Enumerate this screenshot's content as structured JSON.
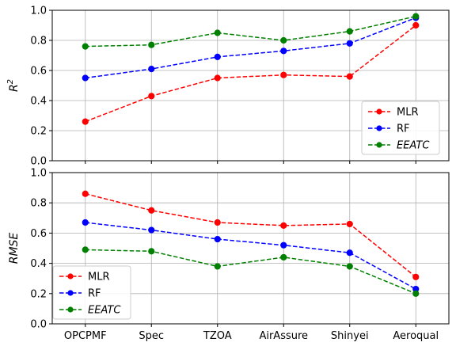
{
  "chart_data": [
    {
      "type": "line",
      "categories": [
        "OPCPMF",
        "Spec",
        "TZOA",
        "AirAssure",
        "Shinyei",
        "Aeroqual"
      ],
      "ylabel": "R",
      "ylabel_superscript": "2",
      "ylim": [
        0,
        1.0
      ],
      "yticks": [
        "0.0",
        "0.2",
        "0.4",
        "0.6",
        "0.8",
        "1.0"
      ],
      "grid": true,
      "legend_position": "lower-right",
      "series": [
        {
          "name": "MLR",
          "color": "#ff0000",
          "values": [
            0.26,
            0.43,
            0.55,
            0.57,
            0.56,
            0.9
          ]
        },
        {
          "name": "RF",
          "color": "#0000ff",
          "values": [
            0.55,
            0.61,
            0.69,
            0.73,
            0.78,
            0.95
          ]
        },
        {
          "name": "EEATC",
          "color": "#008000",
          "values": [
            0.76,
            0.77,
            0.85,
            0.8,
            0.86,
            0.96
          ]
        }
      ]
    },
    {
      "type": "line",
      "categories": [
        "OPCPMF",
        "Spec",
        "TZOA",
        "AirAssure",
        "Shinyei",
        "Aeroqual"
      ],
      "ylabel": "RMSE",
      "ylim": [
        0,
        1.0
      ],
      "yticks": [
        "0.0",
        "0.2",
        "0.4",
        "0.6",
        "0.8",
        "1.0"
      ],
      "grid": true,
      "legend_position": "lower-left",
      "series": [
        {
          "name": "MLR",
          "color": "#ff0000",
          "values": [
            0.86,
            0.75,
            0.67,
            0.65,
            0.66,
            0.31
          ]
        },
        {
          "name": "RF",
          "color": "#0000ff",
          "values": [
            0.67,
            0.62,
            0.56,
            0.52,
            0.47,
            0.23
          ]
        },
        {
          "name": "EEATC",
          "color": "#008000",
          "values": [
            0.49,
            0.48,
            0.38,
            0.44,
            0.38,
            0.2
          ]
        }
      ]
    }
  ]
}
